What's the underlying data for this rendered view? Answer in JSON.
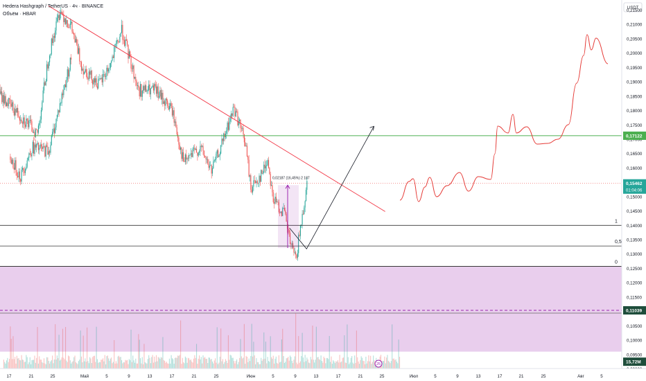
{
  "header": {
    "symbol_line": "Hedera Hashgraph / TetherUS · 4ч · BINANCE",
    "volume_line": "Объём · HBAR",
    "currency": "USDT"
  },
  "colors": {
    "up": "#26a69a",
    "down": "#ef5350",
    "green_line": "#4caf50",
    "trend_line": "#f23645",
    "zone_fill": "#e1bee7",
    "measure": "#9c27b0",
    "price_badge": "#26a69a",
    "green_badge": "#4caf50",
    "dark_badge": "#1e4d3b",
    "drawing_red": "#e53935",
    "arrow": "#131722"
  },
  "price_labels": {
    "current_price": "0,15462",
    "countdown": "01:04:06",
    "green_level": "0,17122",
    "zone_level": "0,11039",
    "volume_value": "15,72M"
  },
  "fib_labels": [
    "1",
    "0,5",
    "0"
  ],
  "measure_label": "0,02187 (16,45%) 2 187",
  "event_badge": "25",
  "chart_data": {
    "type": "candlestick",
    "y_axis": {
      "range": [
        0.09,
        0.2175
      ],
      "ticks": [
        "0,21500",
        "0,21000",
        "0,20500",
        "0,20000",
        "0,19500",
        "0,19000",
        "0,18500",
        "0,18000",
        "0,17500",
        "0,17000",
        "0,16500",
        "0,16000",
        "0,15500",
        "0,15000",
        "0,14500",
        "0,14000",
        "0,13500",
        "0,13000",
        "0,12500",
        "0,12000",
        "0,11500",
        "0,11000",
        "0,10500",
        "0,10000",
        "0,09500",
        "0,09000"
      ]
    },
    "x_axis": {
      "tick_labels": [
        "17",
        "21",
        "25",
        "Май",
        "5",
        "9",
        "13",
        "17",
        "21",
        "25",
        "Июн",
        "5",
        "9",
        "13",
        "17",
        "21",
        "25",
        "Июл",
        "5",
        "9",
        "13",
        "17",
        "21",
        "25",
        "Авг",
        "5",
        "9"
      ]
    },
    "anchors": [
      {
        "date": "17 Apr",
        "price": 0.164
      },
      {
        "date": "19 Apr",
        "price": 0.157
      },
      {
        "date": "21 Apr",
        "price": 0.167
      },
      {
        "date": "24 Apr",
        "price": 0.166
      },
      {
        "date": "26 Apr",
        "price": 0.182
      },
      {
        "date": "28 Apr",
        "price": 0.198
      },
      {
        "date": "1 May",
        "price": 0.186
      },
      {
        "date": "4 May",
        "price": 0.18
      },
      {
        "date": "8 May",
        "price": 0.172
      },
      {
        "date": "10 May",
        "price": 0.199
      },
      {
        "date": "12 May",
        "price": 0.215
      },
      {
        "date": "14 May",
        "price": 0.209
      },
      {
        "date": "16 May",
        "price": 0.195
      },
      {
        "date": "19 May",
        "price": 0.189
      },
      {
        "date": "21 May",
        "price": 0.196
      },
      {
        "date": "23 May",
        "price": 0.208
      },
      {
        "date": "26 May",
        "price": 0.187
      },
      {
        "date": "29 May",
        "price": 0.187
      },
      {
        "date": "1 Jun",
        "price": 0.18
      },
      {
        "date": "3 Jun",
        "price": 0.162
      },
      {
        "date": "6 Jun",
        "price": 0.167
      },
      {
        "date": "8 Jun",
        "price": 0.159
      },
      {
        "date": "10 Jun",
        "price": 0.169
      },
      {
        "date": "12 Jun",
        "price": 0.181
      },
      {
        "date": "14 Jun",
        "price": 0.169
      },
      {
        "date": "15 Jun",
        "price": 0.153
      },
      {
        "date": "17 Jun",
        "price": 0.158
      },
      {
        "date": "18 Jun",
        "price": 0.163
      },
      {
        "date": "19 Jun",
        "price": 0.149
      },
      {
        "date": "21 Jun",
        "price": 0.144
      },
      {
        "date": "22 Jun",
        "price": 0.134
      },
      {
        "date": "23 Jun",
        "price": 0.128
      },
      {
        "date": "24 Jun",
        "price": 0.141
      },
      {
        "date": "25 Jun",
        "price": 0.1546
      }
    ],
    "levels": [
      {
        "name": "green",
        "price": 0.17122
      },
      {
        "name": "current",
        "price": 0.15462
      },
      {
        "name": "fib_1",
        "price": 0.14
      },
      {
        "name": "fib_0.5",
        "price": 0.1328
      },
      {
        "name": "fib_0",
        "price": 0.1257
      },
      {
        "name": "zone_top",
        "price": 0.1257
      },
      {
        "name": "zone_mid",
        "price": 0.11039
      },
      {
        "name": "zone_bottom",
        "price": 0.096
      }
    ],
    "volume_spikes": [
      {
        "date": "13 May"
      },
      {
        "date": "23 Jun"
      },
      {
        "date": "27 Apr"
      },
      {
        "date": "8 May"
      }
    ],
    "grid": false,
    "legend": "top-left"
  }
}
